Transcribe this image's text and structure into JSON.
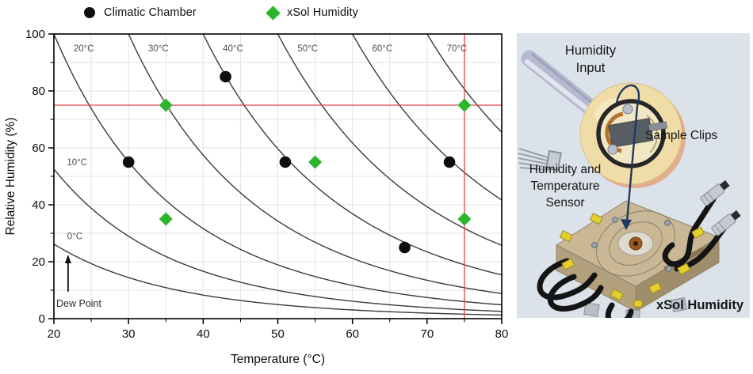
{
  "legend": {
    "items": [
      {
        "label": "Climatic Chamber",
        "marker": "circle",
        "color": "#111111"
      },
      {
        "label": "xSol Humidity",
        "marker": "diamond",
        "color": "#2db52d"
      }
    ]
  },
  "chart_data": {
    "type": "scatter",
    "title": "",
    "xlabel": "Temperature (°C)",
    "ylabel": "Relative Humidity (%)",
    "xlim": [
      20,
      80
    ],
    "ylim": [
      0,
      100
    ],
    "x_ticks": [
      20,
      30,
      40,
      50,
      60,
      70,
      80
    ],
    "x_minor_ticks": [
      25,
      35,
      45,
      55,
      65,
      75
    ],
    "y_ticks": [
      0,
      20,
      40,
      60,
      80,
      100
    ],
    "y_minor_ticks": [
      10,
      30,
      50,
      70,
      90
    ],
    "grid": {
      "x_step": 5,
      "y_step": 10,
      "color": "#e3e3e3"
    },
    "dew_point_curves": {
      "temps": [
        0,
        10,
        20,
        30,
        40,
        50,
        60,
        70
      ],
      "labels": [
        "0°C",
        "10°C",
        "20°C",
        "30°C",
        "40°C",
        "50°C",
        "60°C",
        "70°C"
      ],
      "label_points": [
        [
          22.8,
          29
        ],
        [
          23.1,
          55
        ],
        [
          24,
          95
        ],
        [
          34,
          95
        ],
        [
          44,
          95
        ],
        [
          54,
          95
        ],
        [
          64,
          95
        ],
        [
          74,
          95
        ]
      ],
      "color": "#3a3a3a"
    },
    "crosshair": {
      "x": 75,
      "y": 75,
      "color": "#e2434a"
    },
    "annotation": {
      "text": "Dew Point",
      "arrow_from": [
        21.9,
        9.5
      ],
      "arrow_to": [
        21.9,
        22.5
      ]
    },
    "series": [
      {
        "name": "Climatic Chamber",
        "marker": "circle",
        "color": "#0d0d0d",
        "points": [
          [
            30,
            55
          ],
          [
            43,
            85
          ],
          [
            51,
            55
          ],
          [
            67,
            25
          ],
          [
            73,
            55
          ]
        ]
      },
      {
        "name": "xSol Humidity",
        "marker": "diamond",
        "color": "#2db52d",
        "points": [
          [
            35,
            75
          ],
          [
            35,
            35
          ],
          [
            55,
            55
          ],
          [
            75,
            75
          ],
          [
            75,
            35
          ]
        ]
      }
    ]
  },
  "side_panel": {
    "background": "#dbe2e9",
    "labels": {
      "humidity_input": [
        "Humidity",
        "Input"
      ],
      "sample_clips": "Sample Clips",
      "sensor": [
        "Humidity and",
        "Temperature",
        "Sensor"
      ],
      "device": "xSol Humidity"
    }
  }
}
